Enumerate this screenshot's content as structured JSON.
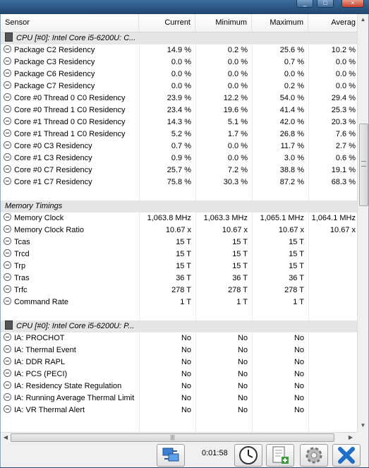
{
  "columns": {
    "sensor": "Sensor",
    "current": "Current",
    "minimum": "Minimum",
    "maximum": "Maximum",
    "average": "Averag"
  },
  "rows": [
    {
      "type": "group",
      "label": "CPU [#0]: Intel Core i5-6200U: C..."
    },
    {
      "type": "sensor",
      "label": "Package C2 Residency",
      "cur": "14.9 %",
      "min": "0.2 %",
      "max": "25.6 %",
      "avg": "10.2 %"
    },
    {
      "type": "sensor",
      "label": "Package C3 Residency",
      "cur": "0.0 %",
      "min": "0.0 %",
      "max": "0.7 %",
      "avg": "0.0 %"
    },
    {
      "type": "sensor",
      "label": "Package C6 Residency",
      "cur": "0.0 %",
      "min": "0.0 %",
      "max": "0.0 %",
      "avg": "0.0 %"
    },
    {
      "type": "sensor",
      "label": "Package C7 Residency",
      "cur": "0.0 %",
      "min": "0.0 %",
      "max": "0.2 %",
      "avg": "0.0 %"
    },
    {
      "type": "sensor",
      "label": "Core #0 Thread 0 C0 Residency",
      "cur": "23.9 %",
      "min": "12.2 %",
      "max": "54.0 %",
      "avg": "29.4 %"
    },
    {
      "type": "sensor",
      "label": "Core #0 Thread 1 C0 Residency",
      "cur": "23.4 %",
      "min": "19.6 %",
      "max": "41.4 %",
      "avg": "25.3 %"
    },
    {
      "type": "sensor",
      "label": "Core #1 Thread 0 C0 Residency",
      "cur": "14.3 %",
      "min": "5.1 %",
      "max": "42.0 %",
      "avg": "20.3 %"
    },
    {
      "type": "sensor",
      "label": "Core #1 Thread 1 C0 Residency",
      "cur": "5.2 %",
      "min": "1.7 %",
      "max": "26.8 %",
      "avg": "7.6 %"
    },
    {
      "type": "sensor",
      "label": "Core #0 C3 Residency",
      "cur": "0.7 %",
      "min": "0.0 %",
      "max": "11.7 %",
      "avg": "2.7 %"
    },
    {
      "type": "sensor",
      "label": "Core #1 C3 Residency",
      "cur": "0.9 %",
      "min": "0.0 %",
      "max": "3.0 %",
      "avg": "0.6 %"
    },
    {
      "type": "sensor",
      "label": "Core #0 C7 Residency",
      "cur": "25.7 %",
      "min": "7.2 %",
      "max": "38.8 %",
      "avg": "19.1 %"
    },
    {
      "type": "sensor",
      "label": "Core #1 C7 Residency",
      "cur": "75.8 %",
      "min": "30.3 %",
      "max": "87.2 %",
      "avg": "68.3 %"
    },
    {
      "type": "blank"
    },
    {
      "type": "group",
      "label": "Memory Timings",
      "nochip": true
    },
    {
      "type": "sensor",
      "label": "Memory Clock",
      "cur": "1,063.8 MHz",
      "min": "1,063.3 MHz",
      "max": "1,065.1 MHz",
      "avg": "1,064.1 MHz"
    },
    {
      "type": "sensor",
      "label": "Memory Clock Ratio",
      "cur": "10.67 x",
      "min": "10.67 x",
      "max": "10.67 x",
      "avg": "10.67 x"
    },
    {
      "type": "sensor",
      "label": "Tcas",
      "cur": "15 T",
      "min": "15 T",
      "max": "15 T",
      "avg": ""
    },
    {
      "type": "sensor",
      "label": "Trcd",
      "cur": "15 T",
      "min": "15 T",
      "max": "15 T",
      "avg": ""
    },
    {
      "type": "sensor",
      "label": "Trp",
      "cur": "15 T",
      "min": "15 T",
      "max": "15 T",
      "avg": ""
    },
    {
      "type": "sensor",
      "label": "Tras",
      "cur": "36 T",
      "min": "36 T",
      "max": "36 T",
      "avg": ""
    },
    {
      "type": "sensor",
      "label": "Trfc",
      "cur": "278 T",
      "min": "278 T",
      "max": "278 T",
      "avg": ""
    },
    {
      "type": "sensor",
      "label": "Command Rate",
      "cur": "1 T",
      "min": "1 T",
      "max": "1 T",
      "avg": ""
    },
    {
      "type": "blank"
    },
    {
      "type": "group",
      "label": "CPU [#0]: Intel Core i5-6200U: P..."
    },
    {
      "type": "sensor",
      "label": "IA: PROCHOT",
      "cur": "No",
      "min": "No",
      "max": "No",
      "avg": ""
    },
    {
      "type": "sensor",
      "label": "IA: Thermal Event",
      "cur": "No",
      "min": "No",
      "max": "No",
      "avg": ""
    },
    {
      "type": "sensor",
      "label": "IA: DDR RAPL",
      "cur": "No",
      "min": "No",
      "max": "No",
      "avg": ""
    },
    {
      "type": "sensor",
      "label": "IA: PCS (PECI)",
      "cur": "No",
      "min": "No",
      "max": "No",
      "avg": ""
    },
    {
      "type": "sensor",
      "label": "IA: Residency State Regulation",
      "cur": "No",
      "min": "No",
      "max": "No",
      "avg": ""
    },
    {
      "type": "sensor",
      "label": "IA: Running Average Thermal Limit",
      "cur": "No",
      "min": "No",
      "max": "No",
      "avg": ""
    },
    {
      "type": "sensor",
      "label": "IA: VR Thermal Alert",
      "cur": "No",
      "min": "No",
      "max": "No",
      "avg": ""
    }
  ],
  "footer": {
    "timer": "0:01:58"
  },
  "icons": {
    "network": "network-icon",
    "clock": "clock-icon",
    "report": "report-add-icon",
    "settings": "gear-icon",
    "close": "close-icon"
  }
}
